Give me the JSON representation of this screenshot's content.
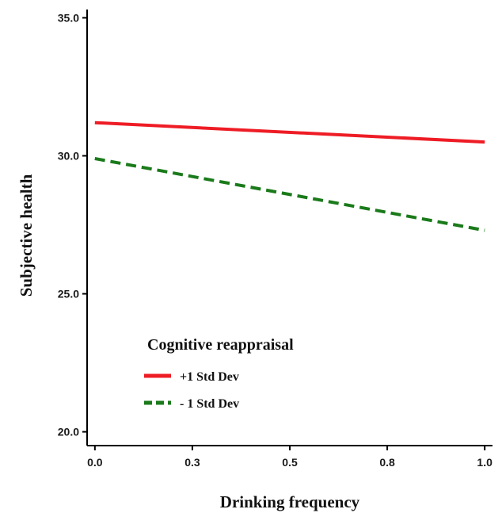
{
  "chart_data": {
    "type": "line",
    "xlabel": "Drinking frequency",
    "ylabel": "Subjective health",
    "xlim": [
      -0.02,
      1.02
    ],
    "ylim": [
      19.5,
      35.3
    ],
    "x_ticks": [
      0.0,
      0.25,
      0.5,
      0.75,
      1.0
    ],
    "x_tick_labels": [
      "0.0",
      "0.3",
      "0.5",
      "0.8",
      "1.0"
    ],
    "y_ticks": [
      20.0,
      25.0,
      30.0,
      35.0
    ],
    "y_tick_labels": [
      "20.0",
      "25.0",
      "30.0",
      "35.0"
    ],
    "grid": false,
    "legend": {
      "title": "Cognitive reappraisal",
      "placement": "lower-left"
    },
    "series": [
      {
        "name": "+1 Std Dev",
        "x": [
          0.0,
          1.0
        ],
        "values": [
          31.2,
          30.5
        ],
        "color": "#ee1c25",
        "line_style": "solid"
      },
      {
        "name": "- 1 Std Dev",
        "x": [
          0.0,
          1.0
        ],
        "values": [
          29.9,
          27.3
        ],
        "color": "#1a7a1a",
        "line_style": "dashed"
      }
    ]
  }
}
